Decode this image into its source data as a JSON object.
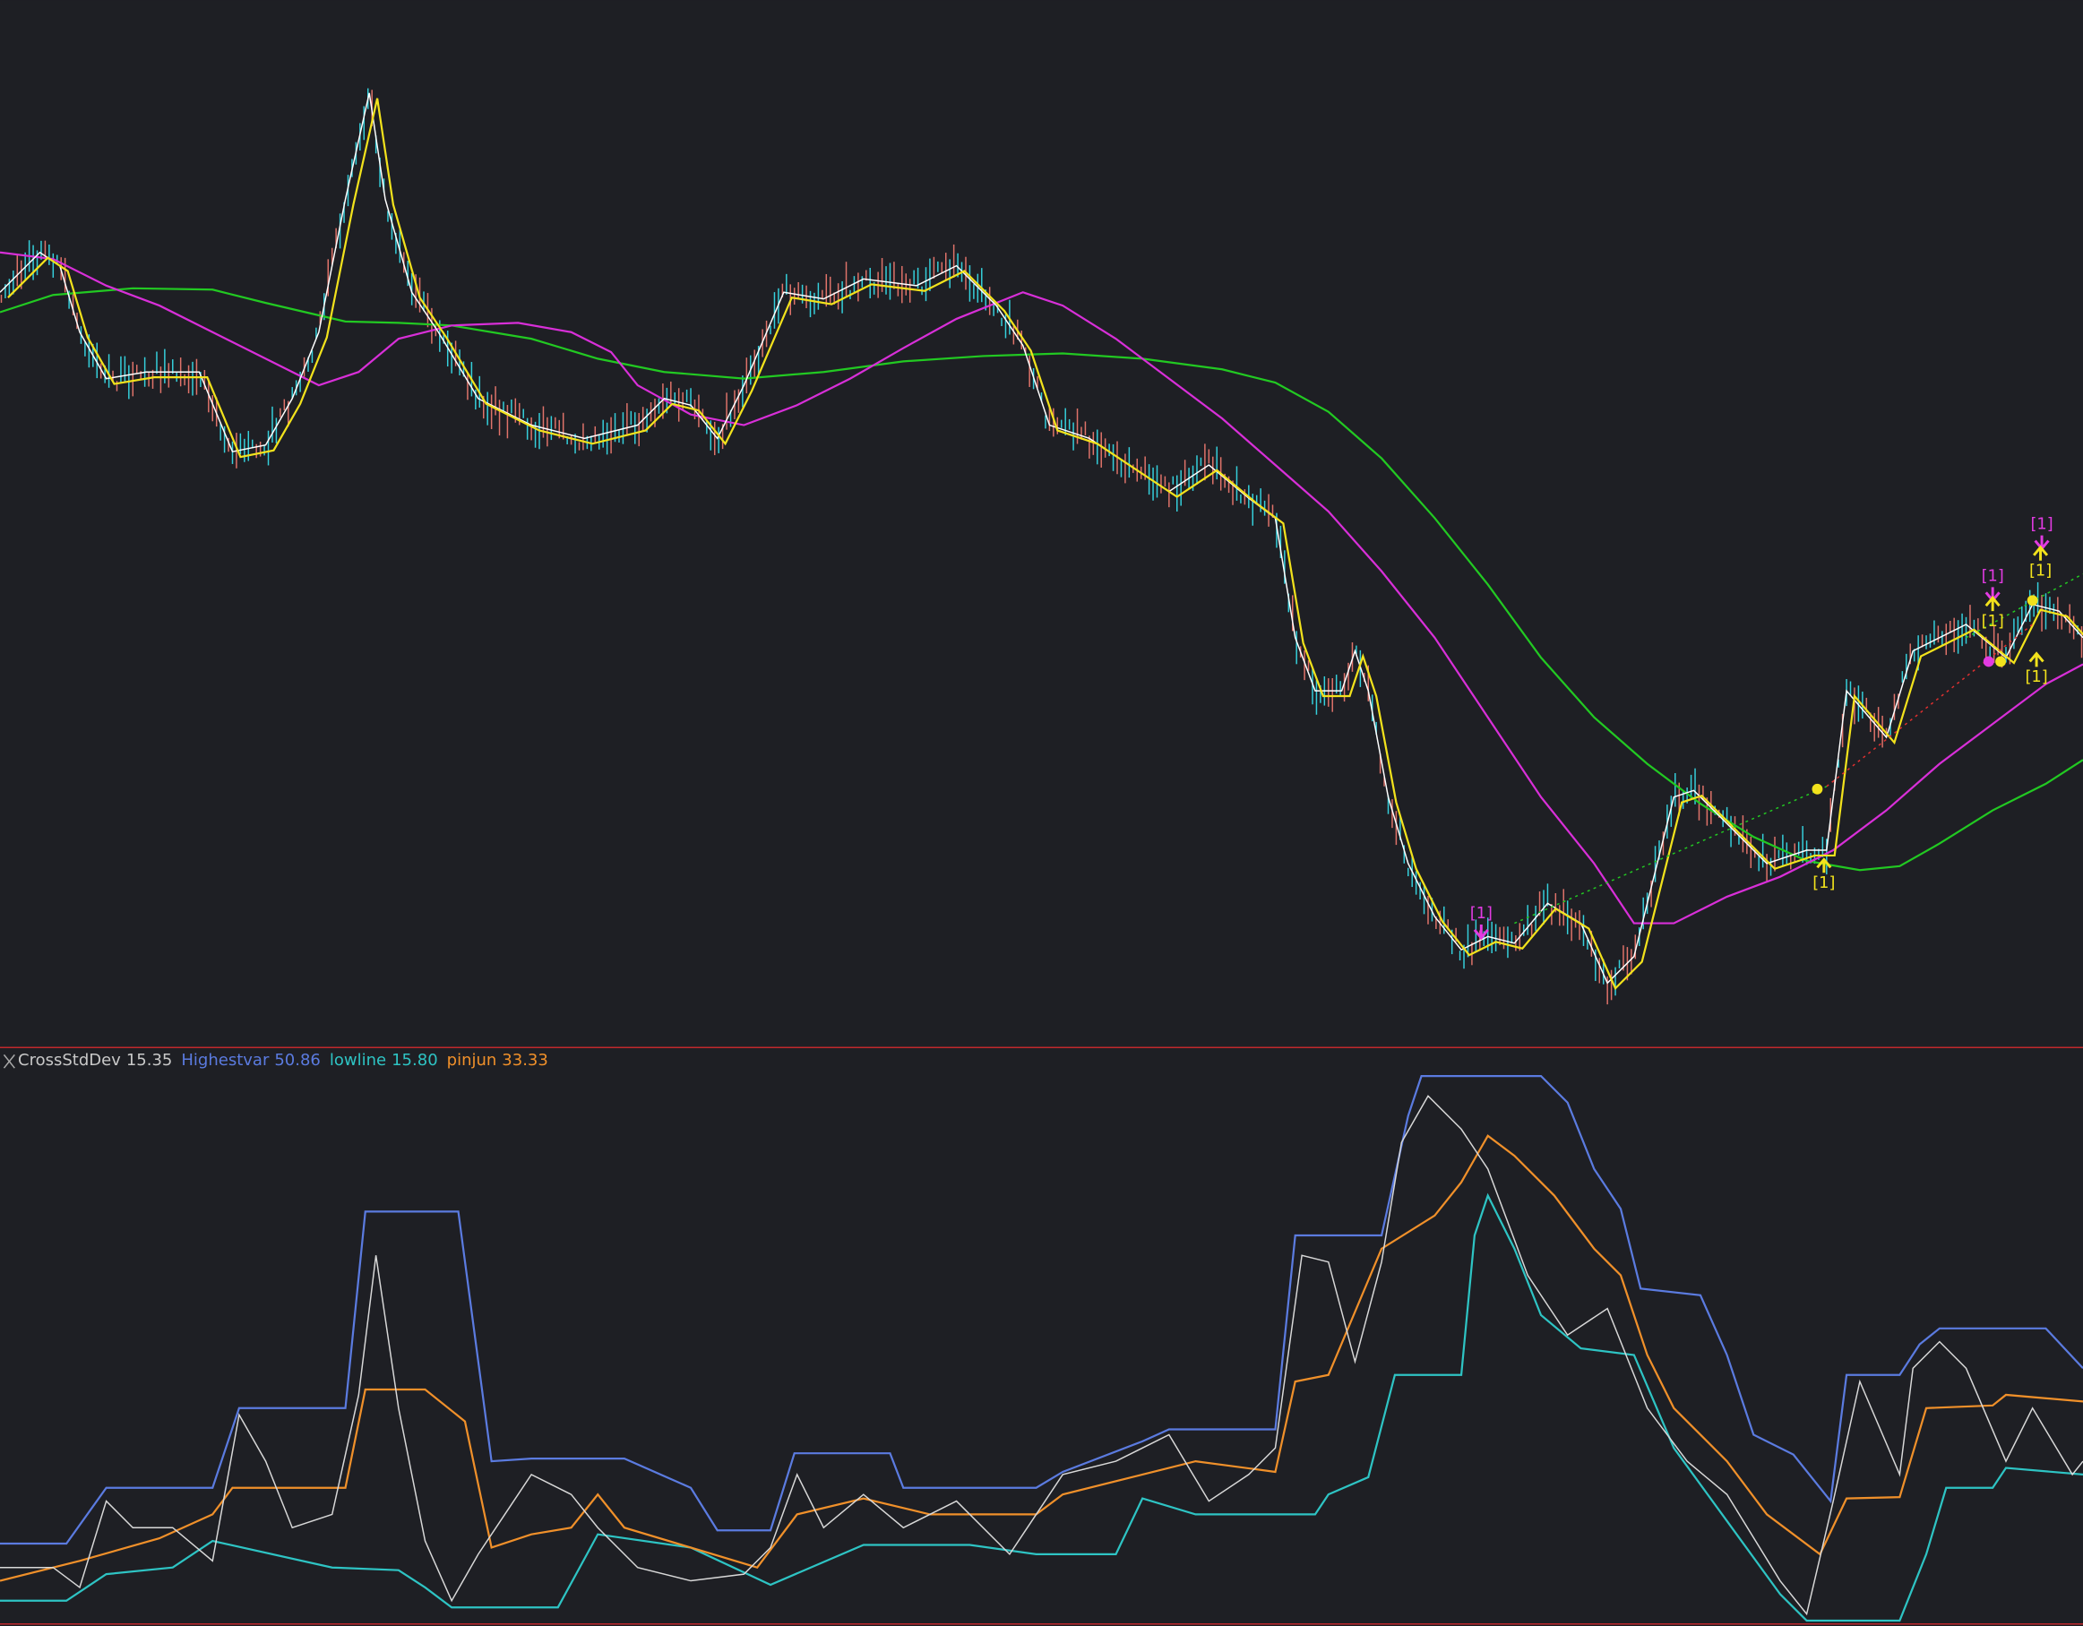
{
  "indicator": {
    "name": "CrossStdDev",
    "value": "15.35",
    "lines": [
      {
        "name": "Highestvar",
        "value": "50.86",
        "color": "#5b7be0"
      },
      {
        "name": "lowline",
        "value": "15.80",
        "color": "#2ec4c4"
      },
      {
        "name": "pinjun",
        "value": "33.33",
        "color": "#f0902a"
      }
    ]
  },
  "signals": [
    {
      "label": "[1]",
      "color": "#e23be2"
    },
    {
      "label": "[1]",
      "color": "#e23be2"
    },
    {
      "label": "[1]",
      "color": "#f2e21c"
    },
    {
      "label": "[1]",
      "color": "#f2e21c"
    },
    {
      "label": "[1]",
      "color": "#f2e21c"
    },
    {
      "label": "[1]",
      "color": "#f2e21c"
    },
    {
      "label": "[1]",
      "color": "#e23be2"
    }
  ]
}
